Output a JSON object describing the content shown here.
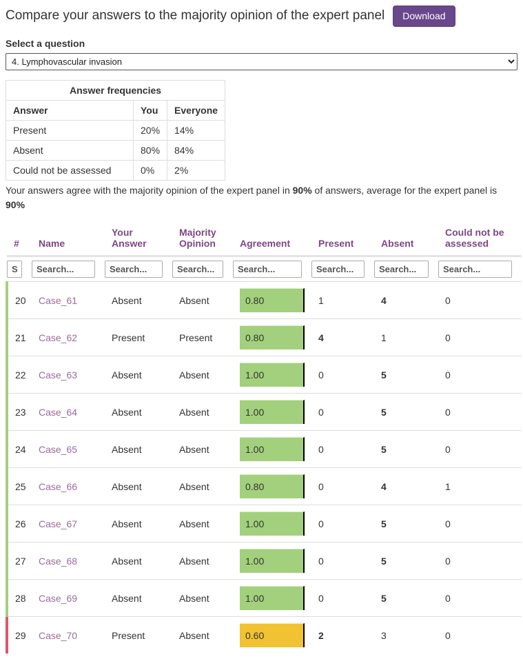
{
  "header": {
    "title": "Compare your answers to the majority opinion of the expert panel",
    "download_label": "Download"
  },
  "question_selector": {
    "label": "Select a question",
    "selected_option": "4. Lymphovascular invasion"
  },
  "frequencies": {
    "title": "Answer frequencies",
    "columns": [
      "Answer",
      "You",
      "Everyone"
    ],
    "rows": [
      [
        "Present",
        "20%",
        "14%"
      ],
      [
        "Absent",
        "80%",
        "84%"
      ],
      [
        "Could not be assessed",
        "0%",
        "2%"
      ]
    ]
  },
  "summary": {
    "part1": "Your answers agree with the majority opinion of the expert panel in ",
    "your_pct": "90%",
    "part2": " of answers, average for the expert panel is ",
    "panel_pct": "90%"
  },
  "results_table": {
    "columns": [
      "#",
      "Name",
      "Your Answer",
      "Majority Opinion",
      "Agreement",
      "Present",
      "Absent",
      "Could not be assessed"
    ],
    "search_placeholder": "Search...",
    "rows": [
      {
        "num": "20",
        "name": "Case_61",
        "your_answer": "Absent",
        "majority": "Absent",
        "agreement": "0.80",
        "agreement_level": "green",
        "present": "1",
        "absent": "4",
        "could_not": "0",
        "bold": "absent",
        "status": "agree"
      },
      {
        "num": "21",
        "name": "Case_62",
        "your_answer": "Present",
        "majority": "Present",
        "agreement": "0.80",
        "agreement_level": "green",
        "present": "4",
        "absent": "1",
        "could_not": "0",
        "bold": "present",
        "status": "agree"
      },
      {
        "num": "22",
        "name": "Case_63",
        "your_answer": "Absent",
        "majority": "Absent",
        "agreement": "1.00",
        "agreement_level": "green",
        "present": "0",
        "absent": "5",
        "could_not": "0",
        "bold": "absent",
        "status": "agree"
      },
      {
        "num": "23",
        "name": "Case_64",
        "your_answer": "Absent",
        "majority": "Absent",
        "agreement": "1.00",
        "agreement_level": "green",
        "present": "0",
        "absent": "5",
        "could_not": "0",
        "bold": "absent",
        "status": "agree"
      },
      {
        "num": "24",
        "name": "Case_65",
        "your_answer": "Absent",
        "majority": "Absent",
        "agreement": "1.00",
        "agreement_level": "green",
        "present": "0",
        "absent": "5",
        "could_not": "0",
        "bold": "absent",
        "status": "agree"
      },
      {
        "num": "25",
        "name": "Case_66",
        "your_answer": "Absent",
        "majority": "Absent",
        "agreement": "0.80",
        "agreement_level": "green",
        "present": "0",
        "absent": "4",
        "could_not": "1",
        "bold": "absent",
        "status": "agree"
      },
      {
        "num": "26",
        "name": "Case_67",
        "your_answer": "Absent",
        "majority": "Absent",
        "agreement": "1.00",
        "agreement_level": "green",
        "present": "0",
        "absent": "5",
        "could_not": "0",
        "bold": "absent",
        "status": "agree"
      },
      {
        "num": "27",
        "name": "Case_68",
        "your_answer": "Absent",
        "majority": "Absent",
        "agreement": "1.00",
        "agreement_level": "green",
        "present": "0",
        "absent": "5",
        "could_not": "0",
        "bold": "absent",
        "status": "agree"
      },
      {
        "num": "28",
        "name": "Case_69",
        "your_answer": "Absent",
        "majority": "Absent",
        "agreement": "1.00",
        "agreement_level": "green",
        "present": "0",
        "absent": "5",
        "could_not": "0",
        "bold": "absent",
        "status": "agree"
      },
      {
        "num": "29",
        "name": "Case_70",
        "your_answer": "Present",
        "majority": "Absent",
        "agreement": "0.60",
        "agreement_level": "yellow",
        "present": "2",
        "absent": "3",
        "could_not": "0",
        "bold": "present",
        "status": "disagree"
      }
    ]
  },
  "colors": {
    "button_purple": "#68478b",
    "header_purple": "#7d4687",
    "link_purple": "#9a6b9b",
    "agreement_green": "#a3d07c",
    "agreement_yellow": "#f1c232",
    "stripe_agree": "#a3d07c",
    "stripe_disagree": "#e0546c"
  }
}
